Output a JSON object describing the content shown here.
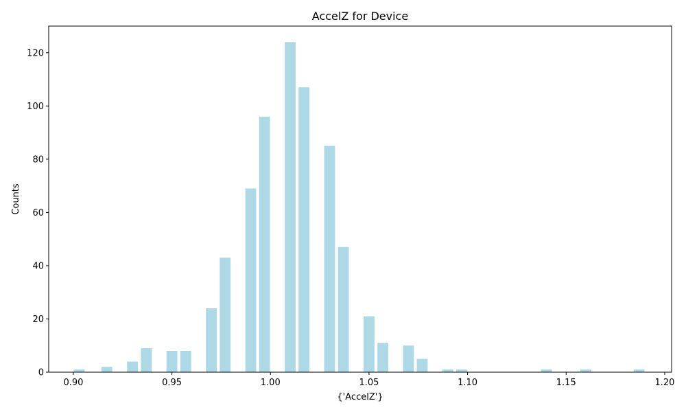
{
  "chart_data": {
    "type": "bar",
    "title": "AccelZ for Device",
    "xlabel": "{'AccelZ'}",
    "ylabel": "Counts",
    "xlim": [
      0.8875,
      1.2035
    ],
    "ylim": [
      0,
      130
    ],
    "xticks": [
      0.9,
      0.95,
      1.0,
      1.05,
      1.1,
      1.15,
      1.2
    ],
    "xtick_labels": [
      "0.90",
      "0.95",
      "1.00",
      "1.05",
      "1.10",
      "1.15",
      "1.20"
    ],
    "yticks": [
      0,
      20,
      40,
      60,
      80,
      100,
      120
    ],
    "ytick_labels": [
      "0",
      "20",
      "40",
      "60",
      "80",
      "100",
      "120"
    ],
    "bar_color": "#add8e6",
    "bar_width": 0.0055,
    "grid": false,
    "x": [
      0.903,
      0.917,
      0.93,
      0.937,
      0.95,
      0.957,
      0.97,
      0.977,
      0.99,
      0.997,
      1.01,
      1.017,
      1.03,
      1.037,
      1.05,
      1.057,
      1.07,
      1.077,
      1.09,
      1.097,
      1.14,
      1.16,
      1.187
    ],
    "values": [
      1,
      2,
      4,
      9,
      8,
      8,
      24,
      43,
      69,
      96,
      124,
      107,
      85,
      47,
      21,
      11,
      10,
      5,
      1,
      1,
      1,
      1,
      1
    ]
  }
}
